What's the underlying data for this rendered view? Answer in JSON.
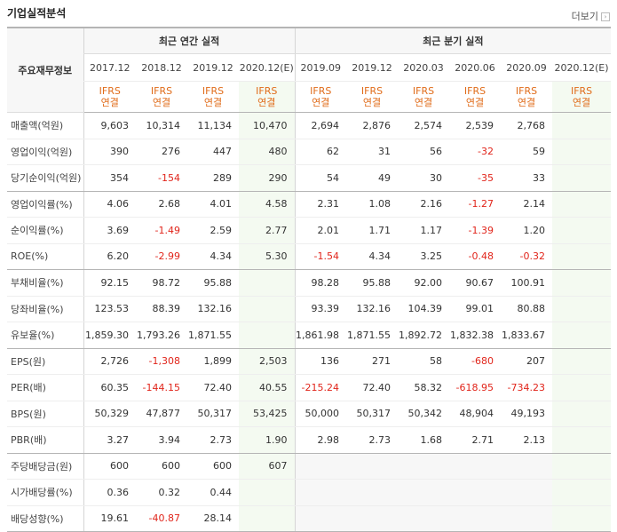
{
  "header": {
    "title": "기업실적분석",
    "more_label": "더보기"
  },
  "table": {
    "label_header": "주요재무정보",
    "groups": {
      "annual": "최근 연간 실적",
      "quarterly": "최근 분기 실적"
    },
    "periods": [
      "2017.12",
      "2018.12",
      "2019.12",
      "2020.12(E)",
      "2019.09",
      "2019.12",
      "2020.03",
      "2020.06",
      "2020.09",
      "2020.12(E)"
    ],
    "ifrs": {
      "line1": "IFRS",
      "line2": "연결"
    },
    "rows": [
      {
        "label": "매출액(억원)",
        "values": [
          "9,603",
          "10,314",
          "11,134",
          "10,470",
          "2,694",
          "2,876",
          "2,574",
          "2,539",
          "2,768",
          ""
        ]
      },
      {
        "label": "영업이익(억원)",
        "values": [
          "390",
          "276",
          "447",
          "480",
          "62",
          "31",
          "56",
          "-32",
          "59",
          ""
        ]
      },
      {
        "label": "당기순이익(억원)",
        "values": [
          "354",
          "-154",
          "289",
          "290",
          "54",
          "49",
          "30",
          "-35",
          "33",
          ""
        ]
      },
      {
        "label": "영업이익률(%)",
        "values": [
          "4.06",
          "2.68",
          "4.01",
          "4.58",
          "2.31",
          "1.08",
          "2.16",
          "-1.27",
          "2.14",
          ""
        ]
      },
      {
        "label": "순이익률(%)",
        "values": [
          "3.69",
          "-1.49",
          "2.59",
          "2.77",
          "2.01",
          "1.71",
          "1.17",
          "-1.39",
          "1.20",
          ""
        ]
      },
      {
        "label": "ROE(%)",
        "values": [
          "6.20",
          "-2.99",
          "4.34",
          "5.30",
          "-1.54",
          "4.34",
          "3.25",
          "-0.48",
          "-0.32",
          ""
        ]
      },
      {
        "label": "부채비율(%)",
        "values": [
          "92.15",
          "98.72",
          "95.88",
          "",
          "98.28",
          "95.88",
          "92.00",
          "90.67",
          "100.91",
          ""
        ]
      },
      {
        "label": "당좌비율(%)",
        "values": [
          "123.53",
          "88.39",
          "132.16",
          "",
          "93.39",
          "132.16",
          "104.39",
          "99.01",
          "80.88",
          ""
        ]
      },
      {
        "label": "유보율(%)",
        "values": [
          "1,859.30",
          "1,793.26",
          "1,871.55",
          "",
          "1,861.98",
          "1,871.55",
          "1,892.72",
          "1,832.38",
          "1,833.67",
          ""
        ]
      },
      {
        "label": "EPS(원)",
        "values": [
          "2,726",
          "-1,308",
          "1,899",
          "2,503",
          "136",
          "271",
          "58",
          "-680",
          "207",
          ""
        ]
      },
      {
        "label": "PER(배)",
        "values": [
          "60.35",
          "-144.15",
          "72.40",
          "40.55",
          "-215.24",
          "72.40",
          "58.32",
          "-618.95",
          "-734.23",
          ""
        ]
      },
      {
        "label": "BPS(원)",
        "values": [
          "50,329",
          "47,877",
          "50,317",
          "53,425",
          "50,000",
          "50,317",
          "50,342",
          "48,904",
          "49,193",
          ""
        ]
      },
      {
        "label": "PBR(배)",
        "values": [
          "3.27",
          "3.94",
          "2.73",
          "1.90",
          "2.98",
          "2.73",
          "1.68",
          "2.71",
          "2.13",
          ""
        ]
      },
      {
        "label": "주당배당금(원)",
        "values": [
          "600",
          "600",
          "600",
          "607",
          "",
          "",
          "",
          "",
          "",
          ""
        ]
      },
      {
        "label": "시가배당률(%)",
        "values": [
          "0.36",
          "0.32",
          "0.44",
          "",
          "",
          "",
          "",
          "",
          "",
          ""
        ]
      },
      {
        "label": "배당성향(%)",
        "values": [
          "19.61",
          "-40.87",
          "28.14",
          "",
          "",
          "",
          "",
          "",
          "",
          ""
        ]
      }
    ]
  }
}
